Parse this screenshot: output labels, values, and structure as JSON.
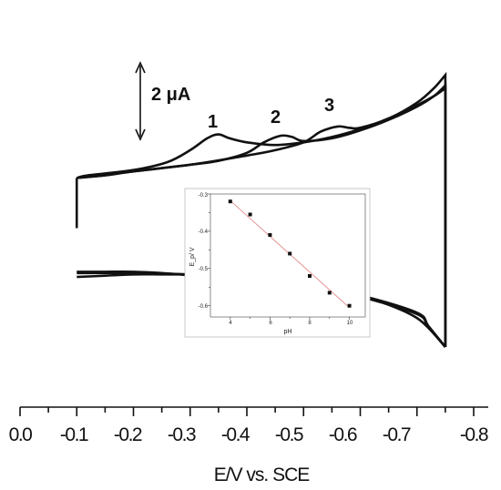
{
  "chart_data": [
    {
      "type": "line",
      "title": "",
      "xlabel": "E/V vs. SCE",
      "ylabel": "",
      "xlim": [
        0.0,
        -0.8
      ],
      "x_ticks": [
        "0.0",
        "-0.1",
        "-0.2",
        "-0.3",
        "-0.4",
        "-0.5",
        "-0.6",
        "-0.7",
        "-0.8"
      ],
      "scale_bar_label": "2 μA",
      "peak_labels": [
        "1",
        "2",
        "3"
      ],
      "curve_color": "#111111",
      "series": [
        {
          "upper_x": [
            -0.1,
            -0.12,
            -0.2,
            -0.26,
            -0.3,
            -0.33,
            -0.35,
            -0.37,
            -0.4,
            -0.45,
            -0.5,
            -0.55,
            -0.6,
            -0.65,
            -0.7,
            -0.73,
            -0.75
          ],
          "upper_y": [
            4.8,
            5.0,
            5.4,
            6.0,
            6.9,
            7.8,
            8.1,
            7.8,
            7.5,
            7.3,
            7.5,
            7.9,
            8.5,
            9.3,
            10.3,
            11.0,
            11.6
          ],
          "lower_x": [
            -0.75,
            -0.72,
            -0.7,
            -0.6,
            -0.5,
            -0.4,
            -0.35,
            -0.32,
            -0.3,
            -0.25,
            -0.2,
            -0.15,
            -0.1
          ],
          "lower_y": [
            -8.0,
            -6.5,
            -5.5,
            -4.2,
            -3.6,
            -3.4,
            -3.5,
            -3.0,
            -2.6,
            -2.4,
            -2.3,
            -2.3,
            -2.3
          ]
        },
        {
          "upper_x": [
            -0.1,
            -0.15,
            -0.2,
            -0.3,
            -0.35,
            -0.4,
            -0.43,
            -0.46,
            -0.48,
            -0.5,
            -0.55,
            -0.6,
            -0.65,
            -0.7,
            -0.73,
            -0.75
          ],
          "upper_y": [
            4.8,
            5.0,
            5.3,
            5.8,
            6.1,
            6.7,
            7.5,
            8.0,
            7.9,
            7.6,
            7.8,
            8.4,
            9.2,
            10.2,
            11.0,
            11.8
          ],
          "lower_x": [
            -0.75,
            -0.72,
            -0.7,
            -0.6,
            -0.52,
            -0.48,
            -0.45,
            -0.42,
            -0.38,
            -0.35,
            -0.3,
            -0.25,
            -0.2,
            -0.15,
            -0.1
          ],
          "lower_y": [
            -8.0,
            -6.4,
            -5.4,
            -4.1,
            -3.6,
            -3.4,
            -3.0,
            -2.8,
            -2.6,
            -2.5,
            -2.5,
            -2.5,
            -2.5,
            -2.6,
            -2.7
          ]
        },
        {
          "upper_x": [
            -0.1,
            -0.15,
            -0.2,
            -0.3,
            -0.4,
            -0.45,
            -0.5,
            -0.53,
            -0.56,
            -0.58,
            -0.6,
            -0.65,
            -0.7,
            -0.73,
            -0.75
          ],
          "upper_y": [
            4.8,
            5.0,
            5.3,
            5.8,
            6.5,
            6.9,
            7.5,
            8.3,
            8.7,
            8.6,
            8.6,
            9.3,
            10.5,
            11.6,
            12.6
          ],
          "lower_x": [
            -0.75,
            -0.73,
            -0.7,
            -0.65,
            -0.6,
            -0.57,
            -0.54,
            -0.51,
            -0.48,
            -0.45,
            -0.4,
            -0.3,
            -0.2,
            -0.1
          ],
          "lower_y": [
            -8.0,
            -7.0,
            -5.8,
            -4.8,
            -4.2,
            -3.9,
            -3.6,
            -3.2,
            -3.0,
            -2.9,
            -2.7,
            -2.5,
            -2.4,
            -2.4
          ]
        }
      ],
      "peaks": [
        {
          "label": "1",
          "x": -0.35,
          "y": 8.1
        },
        {
          "label": "2",
          "x": -0.46,
          "y": 8.0
        },
        {
          "label": "3",
          "x": -0.57,
          "y": 8.7
        }
      ]
    },
    {
      "type": "scatter",
      "title": "",
      "xlabel": "pH",
      "ylabel": "E_p/ V",
      "xlim": [
        3,
        10.8
      ],
      "ylim": [
        -0.63,
        -0.3
      ],
      "x_ticks": [
        "4",
        "6",
        "8",
        "10"
      ],
      "y_ticks": [
        "-0.3",
        "-0.4",
        "-0.5",
        "-0.6"
      ],
      "point_color": "#111111",
      "fit_line_color": "#e48a8a",
      "x": [
        4,
        5,
        6,
        7,
        8,
        9,
        10
      ],
      "y": [
        -0.32,
        -0.355,
        -0.41,
        -0.46,
        -0.52,
        -0.565,
        -0.6
      ],
      "fit": {
        "x": [
          4,
          10
        ],
        "y": [
          -0.318,
          -0.605
        ]
      }
    }
  ]
}
